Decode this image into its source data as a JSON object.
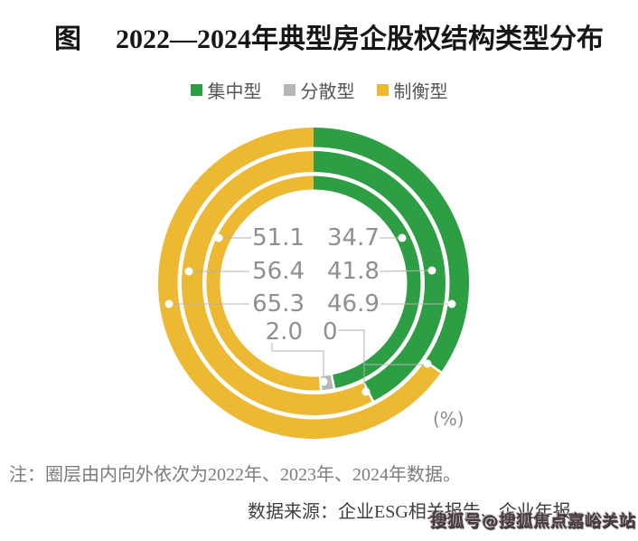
{
  "title": {
    "prefix": "图",
    "text": "2022—2024年典型房企股权结构类型分布"
  },
  "legend": [
    {
      "label": "集中型",
      "color": "#2e9e45"
    },
    {
      "label": "分散型",
      "color": "#b4b8b4"
    },
    {
      "label": "制衡型",
      "color": "#edb933"
    }
  ],
  "chart_data": {
    "type": "donut-multi-ring",
    "title": "图 2022—2024年典型房企股权结构类型分布",
    "unit": "(%)",
    "legend": [
      "集中型",
      "分散型",
      "制衡型"
    ],
    "rings": [
      {
        "position": "inner",
        "year": "2022年",
        "segments": [
          {
            "label": "集中型",
            "value": 46.9
          },
          {
            "label": "分散型",
            "value": 2.0
          },
          {
            "label": "制衡型",
            "value": 51.1
          }
        ]
      },
      {
        "position": "middle",
        "year": "2023年",
        "segments": [
          {
            "label": "集中型",
            "value": 41.8
          },
          {
            "label": "分散型",
            "value": 0
          },
          {
            "label": "制衡型",
            "value": 56.4
          }
        ]
      },
      {
        "position": "outer",
        "year": "2024年",
        "segments": [
          {
            "label": "集中型",
            "value": 34.7
          },
          {
            "label": "分散型",
            "value": 0
          },
          {
            "label": "制衡型",
            "value": 65.3
          }
        ]
      }
    ],
    "center_labels": {
      "rows": [
        {
          "left": "51.1",
          "right": "34.7"
        },
        {
          "left": "56.4",
          "right": "41.8"
        },
        {
          "left": "65.3",
          "right": "46.9"
        },
        {
          "left": "2.0",
          "right": "0"
        }
      ]
    }
  },
  "note": "注：圈层由内向外依次为2022年、2023年、2024年数据。",
  "source": "数据来源：企业ESG相关报告、企业年报。",
  "watermark": "搜狐号@搜狐焦点嘉峪关站"
}
